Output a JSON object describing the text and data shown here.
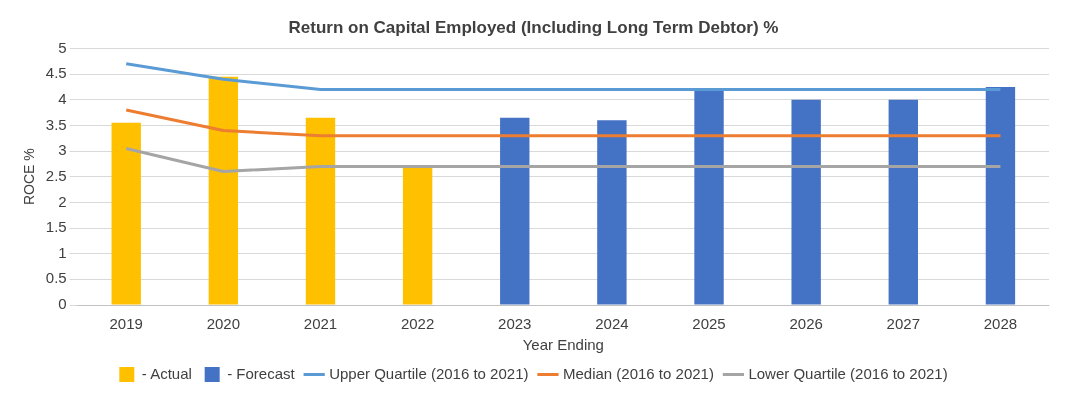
{
  "chart_data": {
    "type": "bar",
    "title": "Return on Capital Employed (Including Long Term Debtor) %",
    "xlabel": "Year Ending",
    "ylabel": "ROCE %",
    "categories": [
      "2019",
      "2020",
      "2021",
      "2022",
      "2023",
      "2024",
      "2025",
      "2026",
      "2027",
      "2028"
    ],
    "series": [
      {
        "name": "- Actual",
        "color": "#ffc000",
        "values": [
          3.55,
          4.45,
          3.65,
          2.7,
          null,
          null,
          null,
          null,
          null,
          null
        ]
      },
      {
        "name": "- Forecast",
        "color": "#4472c4",
        "values": [
          null,
          null,
          null,
          null,
          3.65,
          3.6,
          4.2,
          4.0,
          4.0,
          4.25
        ]
      },
      {
        "name": "Upper Quartile (2016 to 2021)",
        "type": "line",
        "color": "#5b9bd5",
        "values": [
          4.7,
          4.4,
          4.2,
          4.2,
          4.2,
          4.2,
          4.2,
          4.2,
          4.2,
          4.2
        ]
      },
      {
        "name": "Median (2016 to 2021)",
        "type": "line",
        "color": "#ed7d31",
        "values": [
          3.8,
          3.4,
          3.3,
          3.3,
          3.3,
          3.3,
          3.3,
          3.3,
          3.3,
          3.3
        ]
      },
      {
        "name": "Lower Quartile (2016 to 2021)",
        "type": "line",
        "color": "#a5a5a5",
        "values": [
          3.05,
          2.6,
          2.7,
          2.7,
          2.7,
          2.7,
          2.7,
          2.7,
          2.7,
          2.7
        ]
      }
    ],
    "ylim": [
      0,
      5
    ],
    "yticks": [
      0,
      0.5,
      1,
      1.5,
      2,
      2.5,
      3,
      3.5,
      4,
      4.5,
      5
    ],
    "grid": "y",
    "legend": "bottom",
    "marker": "none",
    "line_style": "solid"
  }
}
